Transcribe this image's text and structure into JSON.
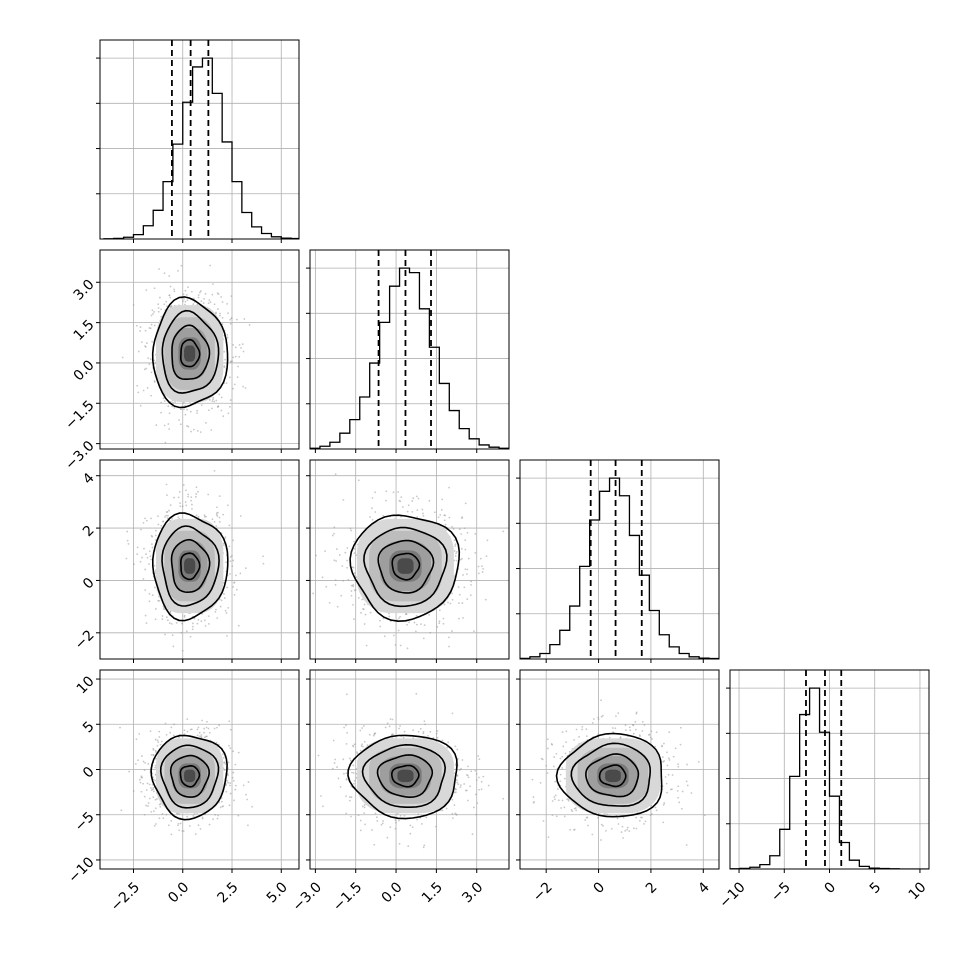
{
  "chart_data": {
    "type": "corner",
    "variables": [
      {
        "range": [
          -4.2,
          5.9
        ],
        "ticks": [
          -2.5,
          0.0,
          2.5,
          5.0
        ],
        "tick_labels": [
          "−2.5",
          "0.0",
          "2.5",
          "5.0"
        ],
        "quantiles": [
          -0.55,
          0.4,
          1.3
        ],
        "hist": {
          "bin_width": 0.5,
          "start": -4.0,
          "counts": [
            1,
            3,
            8,
            20,
            60,
            130,
            260,
            430,
            620,
            780,
            820,
            660,
            440,
            260,
            120,
            55,
            25,
            10,
            4,
            2
          ]
        }
      },
      {
        "range": [
          -3.2,
          4.2
        ],
        "ticks": [
          -3.0,
          -1.5,
          0.0,
          1.5,
          3.0
        ],
        "tick_labels": [
          "−3.0",
          "−1.5",
          "0.0",
          "1.5",
          "3.0"
        ],
        "quantiles": [
          -0.65,
          0.35,
          1.3
        ],
        "hist": {
          "bin_width": 0.37,
          "start": -3.2,
          "counts": [
            3,
            12,
            30,
            70,
            130,
            230,
            380,
            560,
            720,
            800,
            780,
            620,
            450,
            290,
            170,
            90,
            45,
            18,
            8,
            3
          ]
        }
      },
      {
        "range": [
          -3.0,
          4.6
        ],
        "ticks": [
          -2,
          0,
          2,
          4
        ],
        "tick_labels": [
          "−2",
          "0",
          "2",
          "4"
        ],
        "quantiles": [
          -0.3,
          0.65,
          1.65
        ],
        "hist": {
          "bin_width": 0.38,
          "start": -3.0,
          "counts": [
            3,
            10,
            25,
            65,
            130,
            240,
            420,
            630,
            760,
            820,
            740,
            560,
            380,
            220,
            110,
            55,
            25,
            10,
            4,
            2
          ]
        }
      },
      {
        "range": [
          -11,
          11
        ],
        "ticks": [
          -10,
          -5,
          0,
          5,
          10
        ],
        "tick_labels": [
          "−10",
          "−5",
          "0",
          "5",
          "10"
        ],
        "quantiles": [
          -2.6,
          -0.5,
          1.3
        ],
        "hist": {
          "bin_width": 1.1,
          "start": -11,
          "counts": [
            1,
            3,
            8,
            20,
            60,
            180,
            420,
            700,
            820,
            620,
            330,
            120,
            40,
            12,
            4,
            2,
            1,
            0,
            0,
            0
          ]
        }
      }
    ],
    "pairs": [
      {
        "row": 1,
        "col": 0,
        "center": [
          0.35,
          0.35
        ],
        "sigma": [
          0.95,
          1.0
        ],
        "rho": 0.0
      },
      {
        "row": 2,
        "col": 0,
        "center": [
          0.35,
          0.55
        ],
        "sigma": [
          0.95,
          1.0
        ],
        "rho": 0.0
      },
      {
        "row": 2,
        "col": 1,
        "center": [
          0.35,
          0.55
        ],
        "sigma": [
          1.0,
          1.0
        ],
        "rho": 0.0
      },
      {
        "row": 3,
        "col": 0,
        "center": [
          0.35,
          -0.7
        ],
        "sigma": [
          0.95,
          2.3
        ],
        "rho": 0.0
      },
      {
        "row": 3,
        "col": 1,
        "center": [
          0.35,
          -0.7
        ],
        "sigma": [
          1.0,
          2.3
        ],
        "rho": 0.0
      },
      {
        "row": 3,
        "col": 2,
        "center": [
          0.55,
          -0.7
        ],
        "sigma": [
          1.0,
          2.3
        ],
        "rho": 0.0
      }
    ],
    "contour_levels_sigma": [
      0.5,
      1.0,
      1.5,
      2.0
    ],
    "grid": true
  }
}
